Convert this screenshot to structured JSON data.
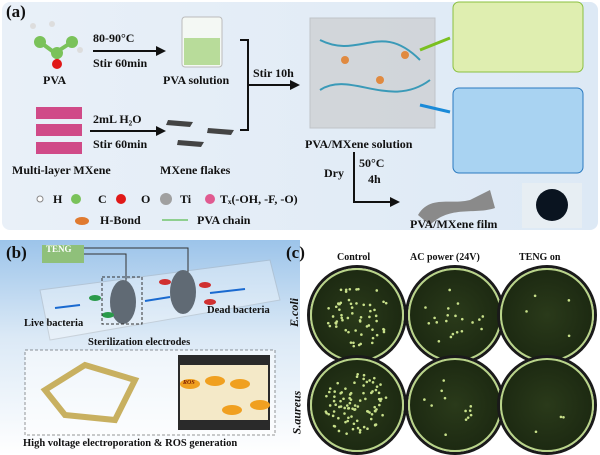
{
  "panel_a": {
    "label": "(a)",
    "pva": "PVA",
    "step1_top": "80-90°C",
    "step1_bottom": "Stir 60min",
    "pva_solution": "PVA solution",
    "mxene": "Multi-layer MXene",
    "step2_top": "2mL H₂O",
    "step2_bottom": "Stir 60min",
    "mxene_flakes": "MXene flakes",
    "stir": "Stir 10h",
    "solution": "PVA/MXene solution",
    "dry": "Dry",
    "dry_temp": "50°C",
    "dry_time": "4h",
    "film": "PVA/MXene film",
    "legend": [
      {
        "label": "H",
        "color": "#ffffff"
      },
      {
        "label": "C",
        "color": "#7ac25a"
      },
      {
        "label": "O",
        "color": "#e01818"
      },
      {
        "label": "Ti",
        "color": "#a0a0a0"
      },
      {
        "label": "Tₓ(-OH, -F, -O)",
        "color": "#e05a90"
      }
    ],
    "legend2": [
      {
        "label": "H-Bond",
        "color": "#e07a30"
      },
      {
        "label": "PVA chain",
        "color": "#8fcf8f"
      }
    ],
    "box_green_color": "#dfeeb0",
    "box_blue_color": "#a9d3f2"
  },
  "panel_b": {
    "label": "(b)",
    "teng": "TENG",
    "live": "Live bacteria",
    "dead": "Dead bacteria",
    "electrodes": "Sterilization electrodes",
    "caption": "High voltage electroporation  & ROS generation",
    "ros": "ROS"
  },
  "panel_c": {
    "label": "(c)",
    "columns": [
      "Control",
      "AC power (24V)",
      "TENG on"
    ],
    "rows": [
      "E.coli",
      "S.aureus"
    ]
  }
}
